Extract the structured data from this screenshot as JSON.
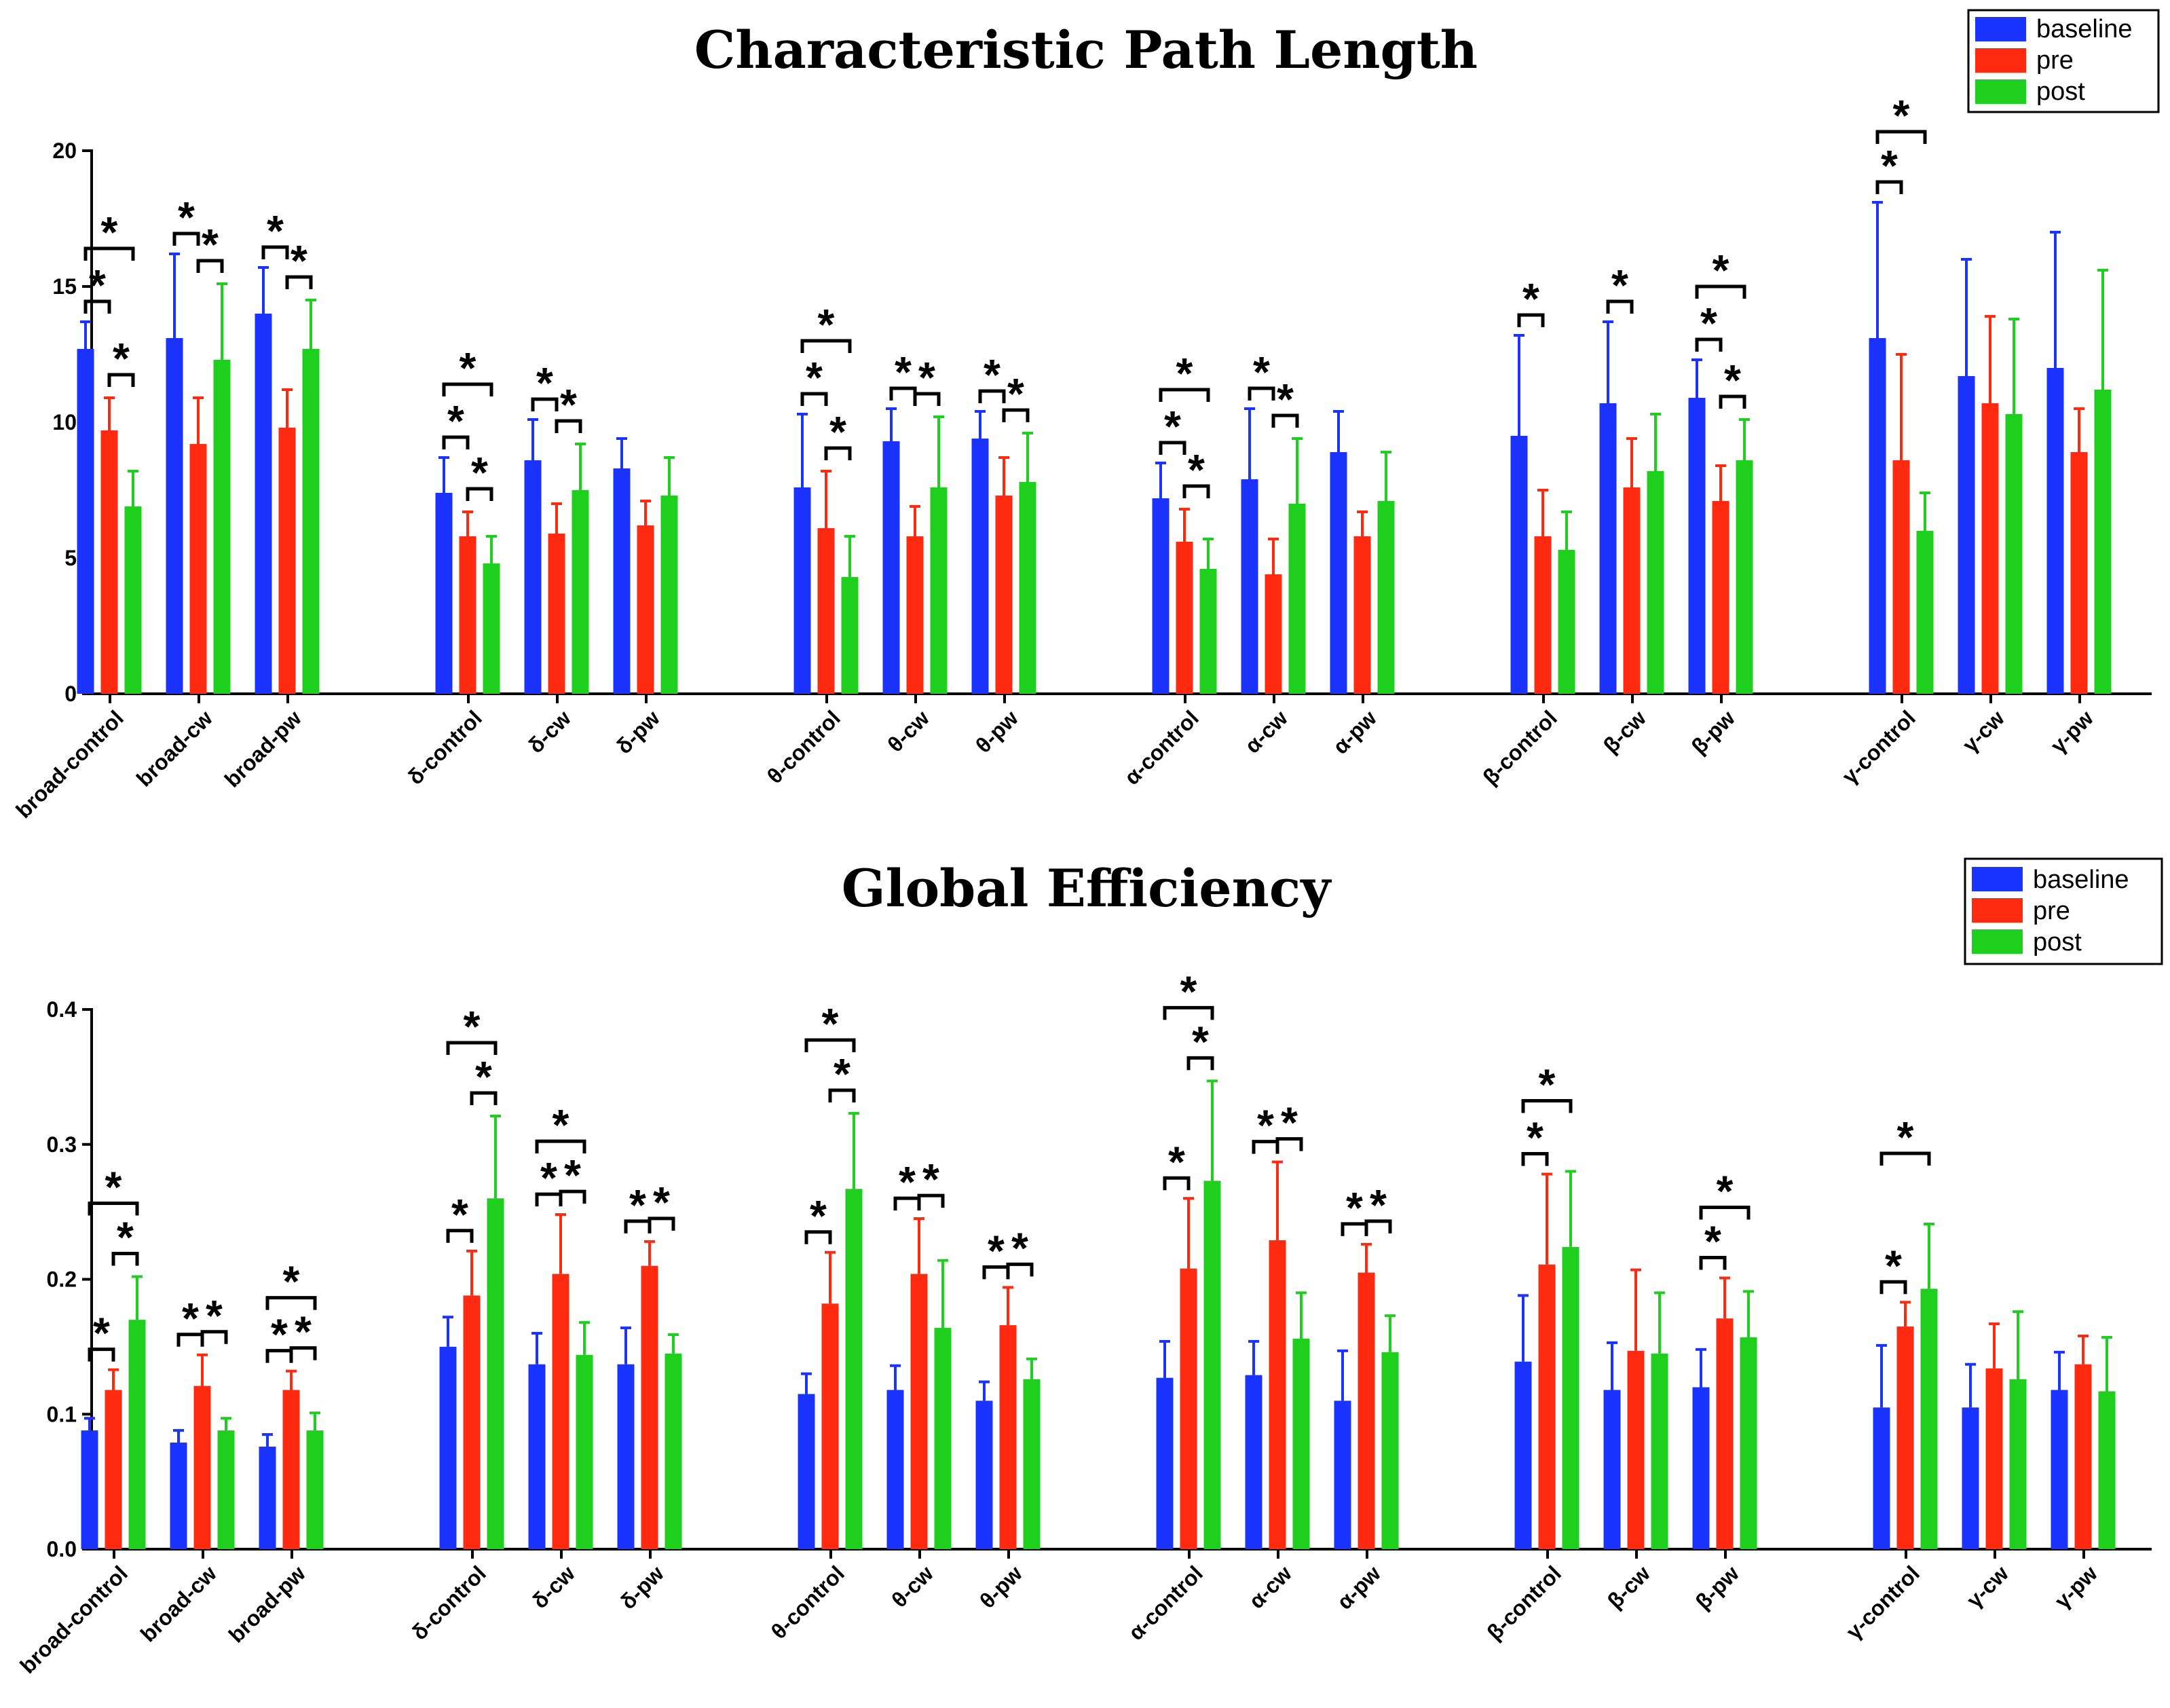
{
  "colors": {
    "baseline": "#1a33ff",
    "pre": "#ff2a0f",
    "post": "#1ecf1e",
    "axis": "#000000"
  },
  "chart_data": [
    {
      "type": "bar",
      "title": "Characteristic Path Length",
      "ylim": [
        0,
        20
      ],
      "yticks": [
        "0",
        "5",
        "10",
        "15",
        "20"
      ],
      "ytick_values": [
        0,
        5,
        10,
        15,
        20
      ],
      "legend": {
        "position": "top-right",
        "entries": [
          "baseline",
          "pre",
          "post"
        ]
      },
      "categories": [
        "broad-control",
        "broad-cw",
        "broad-pw",
        "δ-control",
        "δ-cw",
        "δ-pw",
        "θ-control",
        "θ-cw",
        "θ-pw",
        "α-control",
        "α-cw",
        "α-pw",
        "β-control",
        "β-cw",
        "β-pw",
        "γ-control",
        "γ-cw",
        "γ-pw"
      ],
      "group_sizes": [
        3,
        3,
        3,
        3,
        3,
        3
      ],
      "series": [
        {
          "name": "baseline",
          "values": [
            12.7,
            13.1,
            14.0,
            7.4,
            8.6,
            8.3,
            7.6,
            9.3,
            9.4,
            7.2,
            7.9,
            8.9,
            9.5,
            10.7,
            10.9,
            13.1,
            11.7,
            12.0
          ],
          "errors": [
            1.0,
            3.1,
            1.7,
            1.3,
            1.5,
            1.1,
            2.7,
            1.2,
            1.0,
            1.3,
            2.6,
            1.5,
            3.7,
            3.0,
            1.4,
            5.0,
            4.3,
            5.0
          ]
        },
        {
          "name": "pre",
          "values": [
            9.7,
            9.2,
            9.8,
            5.8,
            5.9,
            6.2,
            6.1,
            5.8,
            7.3,
            5.6,
            4.4,
            5.8,
            5.8,
            7.6,
            7.1,
            8.6,
            10.7,
            8.9
          ],
          "errors": [
            1.2,
            1.7,
            1.4,
            0.9,
            1.1,
            0.9,
            2.1,
            1.1,
            1.4,
            1.2,
            1.3,
            0.9,
            1.7,
            1.8,
            1.3,
            3.9,
            3.2,
            1.6
          ]
        },
        {
          "name": "post",
          "values": [
            6.9,
            12.3,
            12.7,
            4.8,
            7.5,
            7.3,
            4.3,
            7.6,
            7.8,
            4.6,
            7.0,
            7.1,
            5.3,
            8.2,
            8.6,
            6.0,
            10.3,
            11.2
          ],
          "errors": [
            1.3,
            2.8,
            1.8,
            1.0,
            1.7,
            1.4,
            1.5,
            2.6,
            1.8,
            1.1,
            2.4,
            1.8,
            1.4,
            2.1,
            1.5,
            1.4,
            3.5,
            4.4
          ]
        }
      ],
      "significance": [
        {
          "group": 0,
          "pairs": [
            [
              0,
              1
            ],
            [
              1,
              2
            ],
            [
              0,
              2
            ]
          ]
        },
        {
          "group": 1,
          "pairs": [
            [
              0,
              1
            ],
            [
              1,
              2
            ]
          ]
        },
        {
          "group": 2,
          "pairs": [
            [
              0,
              1
            ],
            [
              1,
              2
            ]
          ]
        },
        {
          "group": 3,
          "pairs": [
            [
              0,
              1
            ],
            [
              1,
              2
            ],
            [
              0,
              2
            ]
          ]
        },
        {
          "group": 4,
          "pairs": [
            [
              0,
              1
            ],
            [
              1,
              2
            ]
          ]
        },
        {
          "group": 6,
          "pairs": [
            [
              0,
              1
            ],
            [
              1,
              2
            ],
            [
              0,
              2
            ]
          ]
        },
        {
          "group": 7,
          "pairs": [
            [
              0,
              1
            ],
            [
              1,
              2
            ]
          ]
        },
        {
          "group": 8,
          "pairs": [
            [
              0,
              1
            ],
            [
              1,
              2
            ]
          ]
        },
        {
          "group": 9,
          "pairs": [
            [
              0,
              1
            ],
            [
              1,
              2
            ],
            [
              0,
              2
            ]
          ]
        },
        {
          "group": 10,
          "pairs": [
            [
              0,
              1
            ],
            [
              1,
              2
            ]
          ]
        },
        {
          "group": 12,
          "pairs": [
            [
              0,
              1
            ]
          ]
        },
        {
          "group": 13,
          "pairs": [
            [
              0,
              1
            ]
          ]
        },
        {
          "group": 14,
          "pairs": [
            [
              0,
              1
            ],
            [
              1,
              2
            ],
            [
              0,
              2
            ]
          ]
        },
        {
          "group": 15,
          "pairs": [
            [
              0,
              1
            ],
            [
              0,
              2
            ]
          ]
        }
      ],
      "star_label": "*"
    },
    {
      "type": "bar",
      "title": "Global Efficiency",
      "ylim": [
        0,
        0.4
      ],
      "yticks": [
        "0.0",
        "0.1",
        "0.2",
        "0.3",
        "0.4"
      ],
      "ytick_values": [
        0,
        0.1,
        0.2,
        0.3,
        0.4
      ],
      "legend": {
        "position": "top-right",
        "entries": [
          "baseline",
          "pre",
          "post"
        ]
      },
      "categories": [
        "broad-control",
        "broad-cw",
        "broad-pw",
        "δ-control",
        "δ-cw",
        "δ-pw",
        "θ-control",
        "θ-cw",
        "θ-pw",
        "α-control",
        "α-cw",
        "α-pw",
        "β-control",
        "β-cw",
        "β-pw",
        "γ-control",
        "γ-cw",
        "γ-pw"
      ],
      "group_sizes": [
        3,
        3,
        3,
        3,
        3,
        3
      ],
      "series": [
        {
          "name": "baseline",
          "values": [
            0.088,
            0.079,
            0.076,
            0.15,
            0.137,
            0.137,
            0.115,
            0.118,
            0.11,
            0.127,
            0.129,
            0.11,
            0.139,
            0.118,
            0.12,
            0.105,
            0.105,
            0.118
          ],
          "errors": [
            0.009,
            0.009,
            0.009,
            0.022,
            0.023,
            0.027,
            0.015,
            0.018,
            0.014,
            0.027,
            0.025,
            0.037,
            0.049,
            0.035,
            0.028,
            0.046,
            0.032,
            0.028
          ]
        },
        {
          "name": "pre",
          "values": [
            0.118,
            0.121,
            0.118,
            0.188,
            0.204,
            0.21,
            0.182,
            0.204,
            0.166,
            0.208,
            0.229,
            0.205,
            0.211,
            0.147,
            0.171,
            0.165,
            0.134,
            0.137
          ],
          "errors": [
            0.015,
            0.023,
            0.014,
            0.033,
            0.044,
            0.018,
            0.038,
            0.041,
            0.028,
            0.052,
            0.058,
            0.021,
            0.067,
            0.06,
            0.03,
            0.018,
            0.033,
            0.021
          ]
        },
        {
          "name": "post",
          "values": [
            0.17,
            0.088,
            0.088,
            0.26,
            0.144,
            0.145,
            0.267,
            0.164,
            0.126,
            0.273,
            0.156,
            0.146,
            0.224,
            0.145,
            0.157,
            0.193,
            0.126,
            0.117
          ],
          "errors": [
            0.032,
            0.009,
            0.013,
            0.061,
            0.024,
            0.014,
            0.056,
            0.05,
            0.015,
            0.074,
            0.034,
            0.027,
            0.056,
            0.045,
            0.034,
            0.048,
            0.05,
            0.04
          ]
        }
      ],
      "significance": [
        {
          "group": 0,
          "pairs": [
            [
              0,
              1
            ],
            [
              1,
              2
            ],
            [
              0,
              2
            ]
          ]
        },
        {
          "group": 1,
          "pairs": [
            [
              0,
              1
            ],
            [
              1,
              2
            ]
          ]
        },
        {
          "group": 2,
          "pairs": [
            [
              0,
              1
            ],
            [
              1,
              2
            ],
            [
              0,
              2
            ]
          ]
        },
        {
          "group": 3,
          "pairs": [
            [
              0,
              1
            ],
            [
              1,
              2
            ],
            [
              0,
              2
            ]
          ]
        },
        {
          "group": 4,
          "pairs": [
            [
              0,
              1
            ],
            [
              1,
              2
            ],
            [
              0,
              2
            ]
          ]
        },
        {
          "group": 5,
          "pairs": [
            [
              0,
              1
            ],
            [
              1,
              2
            ]
          ]
        },
        {
          "group": 6,
          "pairs": [
            [
              0,
              1
            ],
            [
              1,
              2
            ],
            [
              0,
              2
            ]
          ]
        },
        {
          "group": 7,
          "pairs": [
            [
              0,
              1
            ],
            [
              1,
              2
            ]
          ]
        },
        {
          "group": 8,
          "pairs": [
            [
              0,
              1
            ],
            [
              1,
              2
            ]
          ]
        },
        {
          "group": 9,
          "pairs": [
            [
              0,
              1
            ],
            [
              1,
              2
            ],
            [
              0,
              2
            ]
          ]
        },
        {
          "group": 10,
          "pairs": [
            [
              0,
              1
            ],
            [
              1,
              2
            ]
          ]
        },
        {
          "group": 11,
          "pairs": [
            [
              0,
              1
            ],
            [
              1,
              2
            ]
          ]
        },
        {
          "group": 12,
          "pairs": [
            [
              0,
              1
            ],
            [
              0,
              2
            ]
          ]
        },
        {
          "group": 14,
          "pairs": [
            [
              0,
              1
            ],
            [
              0,
              2
            ]
          ]
        },
        {
          "group": 15,
          "pairs": [
            [
              0,
              1
            ],
            [
              0,
              2
            ]
          ]
        }
      ],
      "star_label": "*"
    }
  ]
}
